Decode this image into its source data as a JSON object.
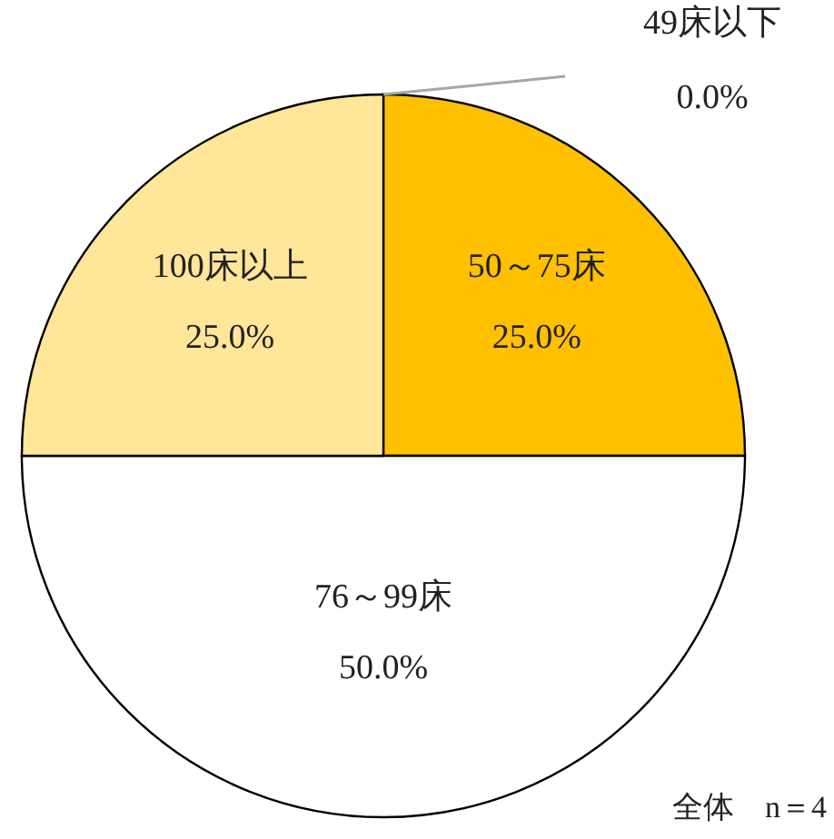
{
  "chart_data": {
    "type": "pie",
    "categories": [
      "49床以下",
      "50～75床",
      "76～99床",
      "100床以上"
    ],
    "values": [
      0,
      25,
      50,
      25
    ],
    "colors": [
      "#a6a6a6",
      "#ffc000",
      "#ffffff",
      "#ffe699"
    ],
    "value_labels": [
      "0.0%",
      "25.0%",
      "50.0%",
      "25.0%"
    ],
    "annotations": [
      "全体　n＝4"
    ]
  }
}
